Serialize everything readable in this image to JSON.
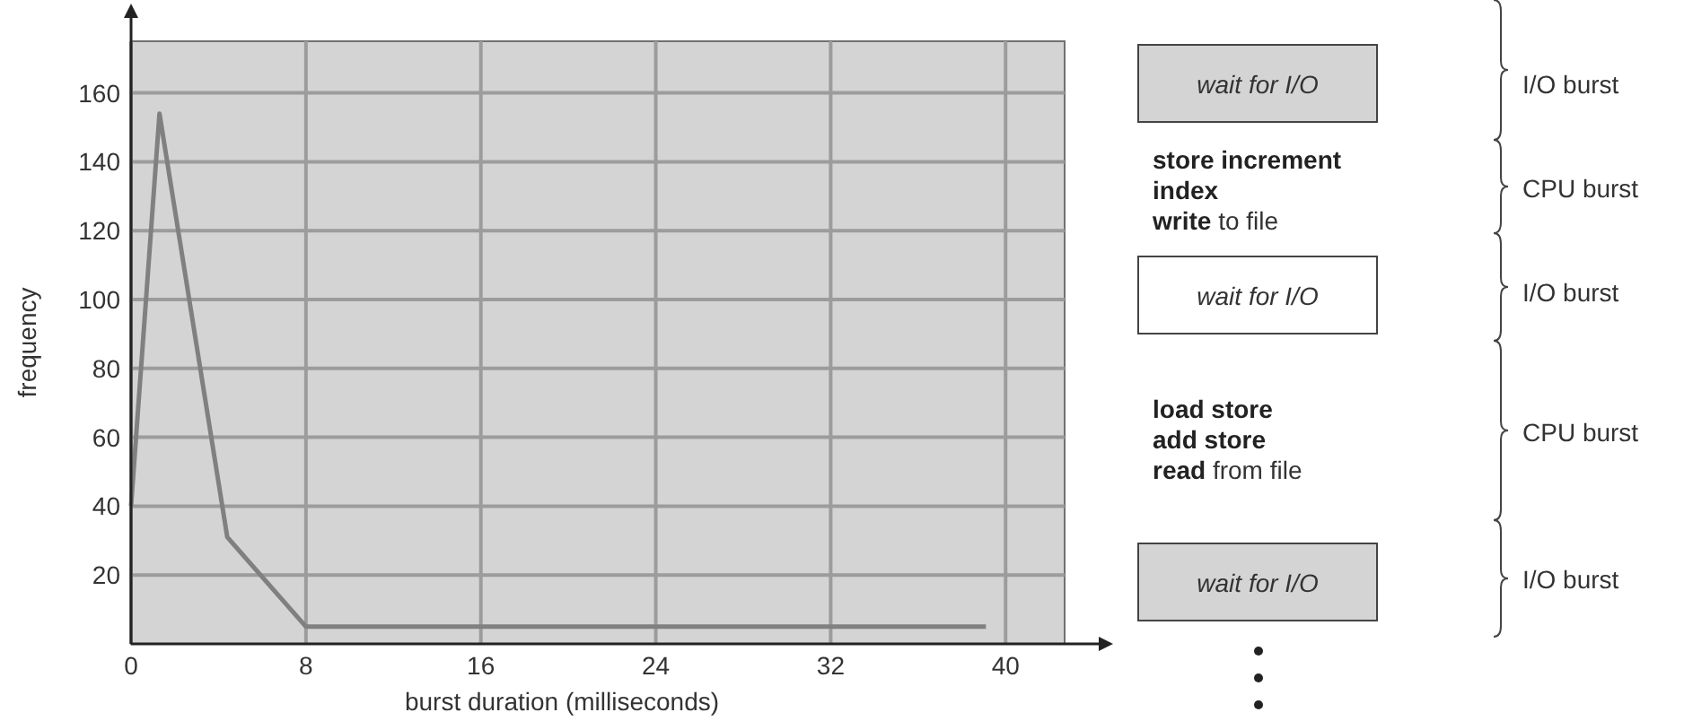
{
  "chart_data": [
    {
      "type": "line",
      "xlabel": "burst duration (milliseconds)",
      "ylabel": "frequency",
      "x": [
        0,
        1.3,
        4.4,
        8,
        39.1
      ],
      "series": [
        {
          "color": "#808080",
          "values": [
            40,
            154,
            31,
            5,
            5
          ]
        }
      ],
      "xlim": [
        0,
        42.7
      ],
      "ylim": [
        0,
        175
      ],
      "xticks": [
        0,
        8,
        16,
        24,
        32,
        40
      ],
      "yticks": [
        20,
        40,
        60,
        80,
        100,
        120,
        140,
        160
      ],
      "grid": true,
      "marker": "none",
      "line_style": "solid"
    },
    {
      "type": "other",
      "annotations": [
        "wait for I/O",
        "I/O burst",
        "store increment",
        "index",
        "write to file",
        "CPU burst",
        "wait for I/O",
        "I/O burst",
        "load store",
        "add store",
        "read from file",
        "CPU burst",
        "wait for I/O",
        "I/O burst"
      ]
    }
  ]
}
